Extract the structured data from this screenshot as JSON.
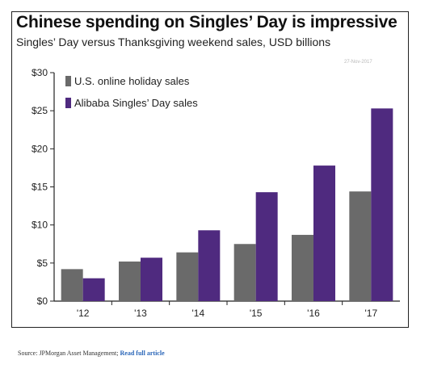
{
  "header": {
    "title": "Chinese spending on Singles’ Day is impressive",
    "subtitle": "Singles’ Day versus Thanksgiving weekend sales, USD billions",
    "watermark": "27-Nov-2017"
  },
  "colors": {
    "us": "#6a6a6a",
    "alibaba": "#4f2a7f",
    "axis": "#222222",
    "link": "#2a66b8"
  },
  "chart_data": {
    "type": "bar",
    "title": "Chinese spending on Singles’ Day is impressive",
    "subtitle": "Singles’ Day versus Thanksgiving weekend sales, USD billions",
    "xlabel": "",
    "ylabel": "",
    "categories": [
      "'12",
      "'13",
      "'14",
      "'15",
      "'16",
      "'17"
    ],
    "series": [
      {
        "name": "U.S. online holiday sales",
        "values": [
          4.2,
          5.2,
          6.4,
          7.5,
          8.7,
          14.4
        ]
      },
      {
        "name": "Alibaba Singles’ Day sales",
        "values": [
          3.0,
          5.7,
          9.3,
          14.3,
          17.8,
          25.3
        ]
      }
    ],
    "ylim": [
      0,
      30
    ],
    "yticks": [
      0,
      5,
      10,
      15,
      20,
      25,
      30
    ],
    "ytick_labels": [
      "$0",
      "$5",
      "$10",
      "$15",
      "$20",
      "$25",
      "$30"
    ],
    "grid": false,
    "legend": "top-left"
  },
  "footer": {
    "source_text": "Source: JPMorgan Asset Management;",
    "link_label": "Read full article"
  }
}
